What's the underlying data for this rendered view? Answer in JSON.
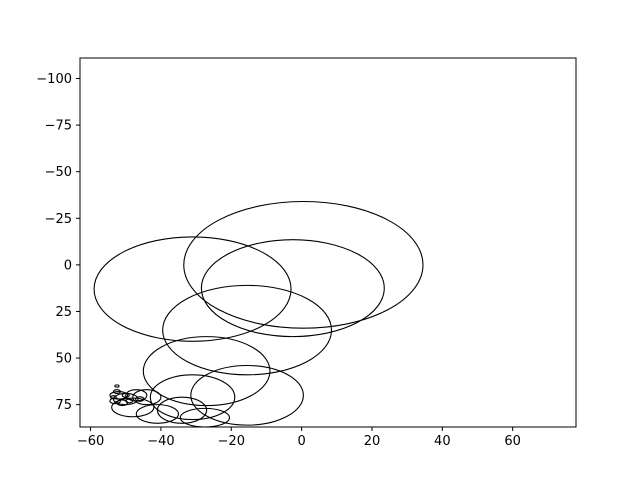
{
  "chart_data": {
    "type": "scatter",
    "title": "",
    "xlabel": "",
    "ylabel": "",
    "xlim": [
      -63,
      78
    ],
    "ylim": [
      87,
      -111
    ],
    "y_axis_inverted": true,
    "grid": false,
    "x_ticks": [
      -60,
      -40,
      -20,
      0,
      20,
      40,
      60
    ],
    "y_ticks": [
      -100,
      -75,
      -50,
      -25,
      0,
      25,
      50,
      75
    ],
    "x_tick_labels": [
      "−60",
      "−40",
      "−20",
      "0",
      "20",
      "40",
      "60"
    ],
    "y_tick_labels": [
      "−100",
      "−75",
      "−50",
      "−25",
      "0",
      "25",
      "50",
      "75"
    ],
    "series": [
      {
        "name": "ellipses",
        "mark": "ellipse-outline",
        "color": "#000000",
        "ellipses": [
          {
            "cx": 0.5,
            "cy": 0,
            "rx": 34,
            "ry": 34
          },
          {
            "cx": -2.5,
            "cy": 12.5,
            "rx": 26,
            "ry": 26
          },
          {
            "cx": -31,
            "cy": 13,
            "rx": 28,
            "ry": 28
          },
          {
            "cx": -15.5,
            "cy": 35,
            "rx": 24,
            "ry": 24
          },
          {
            "cx": -27,
            "cy": 57,
            "rx": 18,
            "ry": 18.5
          },
          {
            "cx": -15.5,
            "cy": 70,
            "rx": 16,
            "ry": 16
          },
          {
            "cx": -31,
            "cy": 71,
            "rx": 12,
            "ry": 12
          },
          {
            "cx": -34,
            "cy": 78,
            "rx": 7,
            "ry": 7
          },
          {
            "cx": -27.5,
            "cy": 82,
            "rx": 7,
            "ry": 5
          },
          {
            "cx": -41,
            "cy": 80,
            "rx": 6,
            "ry": 5
          },
          {
            "cx": -48,
            "cy": 76.5,
            "rx": 6,
            "ry": 5
          },
          {
            "cx": -44,
            "cy": 71,
            "rx": 4,
            "ry": 4
          },
          {
            "cx": -47,
            "cy": 70,
            "rx": 3,
            "ry": 3
          },
          {
            "cx": -50,
            "cy": 72,
            "rx": 3.5,
            "ry": 3
          },
          {
            "cx": -52,
            "cy": 70,
            "rx": 2.5,
            "ry": 2
          },
          {
            "cx": -53,
            "cy": 73,
            "rx": 1.5,
            "ry": 1.5
          },
          {
            "cx": -51,
            "cy": 74,
            "rx": 1.5,
            "ry": 1.5
          },
          {
            "cx": -52.5,
            "cy": 68,
            "rx": 1,
            "ry": 1
          },
          {
            "cx": -52.5,
            "cy": 65,
            "rx": 0.6,
            "ry": 0.6
          },
          {
            "cx": -50,
            "cy": 70,
            "rx": 1,
            "ry": 1
          },
          {
            "cx": -49,
            "cy": 73,
            "rx": 1,
            "ry": 1
          },
          {
            "cx": -46,
            "cy": 72,
            "rx": 1.2,
            "ry": 1.2
          },
          {
            "cx": -53.5,
            "cy": 71,
            "rx": 0.8,
            "ry": 0.8
          }
        ]
      }
    ]
  }
}
